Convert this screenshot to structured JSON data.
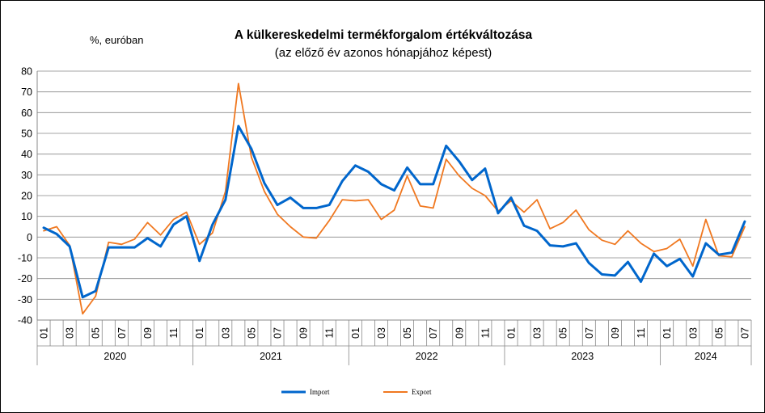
{
  "header": {
    "title": "A külkereskedelmi termékforgalom értékváltozása",
    "subtitle": "(az előző év azonos hónapjához képest)",
    "unit": "%, euróban"
  },
  "chart_data": {
    "type": "line",
    "title": "A külkereskedelmi termékforgalom értékváltozása",
    "subtitle": "(az előző év azonos hónapjához képest)",
    "ylabel": "%, euróban",
    "ylim": [
      -40,
      80
    ],
    "yticks": [
      -40,
      -30,
      -20,
      -10,
      0,
      10,
      20,
      30,
      40,
      50,
      60,
      70,
      80
    ],
    "grid": true,
    "legend_position": "bottom",
    "years": [
      "2020",
      "2021",
      "2022",
      "2023",
      "2024"
    ],
    "x": [
      "2020-01",
      "2020-02",
      "2020-03",
      "2020-04",
      "2020-05",
      "2020-06",
      "2020-07",
      "2020-08",
      "2020-09",
      "2020-10",
      "2020-11",
      "2020-12",
      "2021-01",
      "2021-02",
      "2021-03",
      "2021-04",
      "2021-05",
      "2021-06",
      "2021-07",
      "2021-08",
      "2021-09",
      "2021-10",
      "2021-11",
      "2021-12",
      "2022-01",
      "2022-02",
      "2022-03",
      "2022-04",
      "2022-05",
      "2022-06",
      "2022-07",
      "2022-08",
      "2022-09",
      "2022-10",
      "2022-11",
      "2022-12",
      "2023-01",
      "2023-02",
      "2023-03",
      "2023-04",
      "2023-05",
      "2023-06",
      "2023-07",
      "2023-08",
      "2023-09",
      "2023-10",
      "2023-11",
      "2023-12",
      "2024-01",
      "2024-02",
      "2024-03",
      "2024-04",
      "2024-05",
      "2024-06",
      "2024-07"
    ],
    "tick_labels": [
      "01",
      "",
      "03",
      "",
      "05",
      "",
      "07",
      "",
      "09",
      "",
      "11",
      "",
      "01",
      "",
      "03",
      "",
      "05",
      "",
      "07",
      "",
      "09",
      "",
      "11",
      "",
      "01",
      "",
      "03",
      "",
      "05",
      "",
      "07",
      "",
      "09",
      "",
      "11",
      "",
      "01",
      "",
      "03",
      "",
      "05",
      "",
      "07",
      "",
      "09",
      "",
      "11",
      "",
      "01",
      "",
      "03",
      "",
      "05",
      "",
      "07"
    ],
    "series": [
      {
        "name": "Import",
        "color": "#0066CC",
        "values": [
          4.5,
          1.5,
          -4.5,
          -29.0,
          -26.0,
          -5.0,
          -5.0,
          -5.0,
          -0.5,
          -4.5,
          6.0,
          10.0,
          -11.5,
          6.0,
          18.0,
          53.5,
          42.5,
          26.0,
          15.5,
          19.0,
          14.0,
          14.0,
          15.5,
          27.0,
          34.5,
          31.5,
          25.5,
          22.5,
          33.5,
          25.5,
          25.5,
          44.0,
          36.5,
          27.5,
          33.0,
          11.5,
          19.0,
          5.5,
          3.0,
          -4.0,
          -4.5,
          -3.0,
          -12.5,
          -18.0,
          -18.5,
          -12.0,
          -21.5,
          -8.0,
          -14.0,
          -10.5,
          -19.0,
          -3.0,
          -8.5,
          -7.5,
          7.5
        ]
      },
      {
        "name": "Export",
        "color": "#F07820",
        "values": [
          3.0,
          5.0,
          -4.0,
          -37.0,
          -28.5,
          -2.5,
          -3.5,
          -1.0,
          7.0,
          1.0,
          8.5,
          12.0,
          -3.5,
          2.0,
          22.0,
          74.0,
          38.5,
          22.0,
          11.0,
          5.0,
          0.0,
          -0.5,
          8.0,
          18.0,
          17.5,
          18.0,
          8.5,
          13.0,
          29.5,
          15.0,
          14.0,
          37.5,
          29.5,
          23.5,
          20.0,
          12.5,
          17.5,
          12.0,
          18.0,
          4.0,
          7.0,
          13.0,
          3.5,
          -1.5,
          -3.5,
          3.0,
          -3.0,
          -7.0,
          -5.5,
          -1.0,
          -14.0,
          8.5,
          -9.0,
          -9.5,
          5.0
        ]
      }
    ]
  }
}
